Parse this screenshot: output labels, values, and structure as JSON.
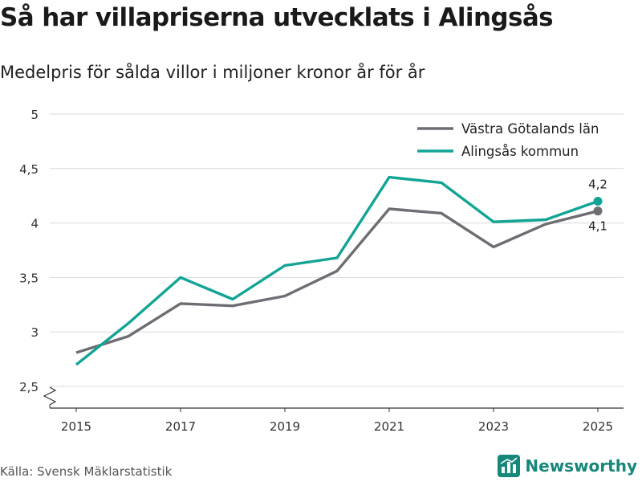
{
  "header": {
    "title": "Så har villapriserna utvecklats i Alingsås",
    "subtitle": "Medelpris för sålda villor i miljoner kronor år för år"
  },
  "footer": {
    "source": "Källa: Svensk Mäklarstatistik",
    "brand": "Newsworthy"
  },
  "colors": {
    "vastra": "#6d6d73",
    "alingsas": "#12a495",
    "grid": "#d9d9d9",
    "axis": "#333333",
    "brand": "#16877a"
  },
  "chart_data": {
    "type": "line",
    "title": "Så har villapriserna utvecklats i Alingsås",
    "subtitle": "Medelpris för sålda villor i miljoner kronor år för år",
    "xlabel": "",
    "ylabel": "",
    "x": [
      2015,
      2016,
      2017,
      2018,
      2019,
      2020,
      2021,
      2022,
      2023,
      2024,
      2025
    ],
    "x_tick_labels": [
      "2015",
      "2017",
      "2019",
      "2021",
      "2023",
      "2025"
    ],
    "x_ticks": [
      2015,
      2017,
      2019,
      2021,
      2023,
      2025
    ],
    "y_ticks": [
      2.5,
      3,
      3.5,
      4,
      4.5,
      5
    ],
    "y_tick_labels": [
      "2,5",
      "3",
      "3,5",
      "4",
      "4,5",
      "5"
    ],
    "ylim": [
      2.5,
      5
    ],
    "xlim": [
      2015,
      2025
    ],
    "grid": true,
    "y_axis_break": true,
    "legend_position": "top-right",
    "series": [
      {
        "name": "Västra Götalands län",
        "color": "#6d6d73",
        "values": [
          2.81,
          2.96,
          3.26,
          3.24,
          3.33,
          3.56,
          4.13,
          4.09,
          3.78,
          3.99,
          4.11
        ],
        "end_label": "4,1"
      },
      {
        "name": "Alingsås kommun",
        "color": "#12a495",
        "values": [
          2.7,
          3.08,
          3.5,
          3.3,
          3.61,
          3.68,
          4.42,
          4.37,
          4.01,
          4.03,
          4.2
        ],
        "end_label": "4,2"
      }
    ]
  }
}
